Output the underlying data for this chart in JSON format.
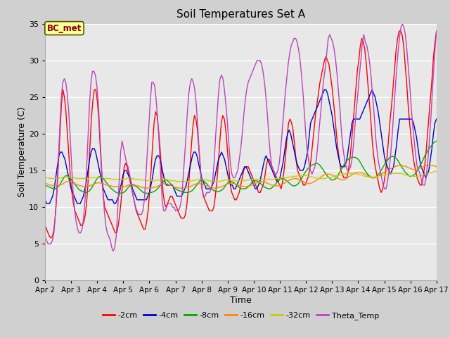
{
  "title": "Soil Temperatures Set A",
  "xlabel": "Time",
  "ylabel": "Soil Temperature (C)",
  "annotation": "BC_met",
  "ylim": [
    0,
    35
  ],
  "series": {
    "-2cm": {
      "color": "#ff0000"
    },
    "-4cm": {
      "color": "#0000cc"
    },
    "-8cm": {
      "color": "#00aa00"
    },
    "-16cm": {
      "color": "#ff8800"
    },
    "-32cm": {
      "color": "#cccc00"
    },
    "Theta_Temp": {
      "color": "#bb44bb"
    }
  },
  "x_labels": [
    "Apr 2",
    "Apr 3",
    "Apr 4",
    "Apr 5",
    "Apr 6",
    "Apr 7",
    "Apr 8",
    "Apr 9",
    "Apr 10",
    "Apr 11",
    "Apr 12",
    "Apr 13",
    "Apr 14",
    "Apr 15",
    "Apr 16",
    "Apr 17"
  ],
  "x_ticks": [
    0,
    24,
    48,
    72,
    96,
    120,
    144,
    168,
    192,
    216,
    240,
    264,
    288,
    312,
    336,
    360
  ],
  "data_2cm": [
    7.5,
    7.0,
    6.5,
    6.0,
    5.8,
    6.0,
    7.0,
    9.0,
    12.0,
    16.0,
    20.0,
    24.0,
    26.0,
    25.0,
    23.0,
    20.0,
    17.0,
    14.0,
    12.0,
    10.5,
    9.5,
    9.0,
    8.5,
    8.0,
    7.5,
    7.5,
    8.0,
    9.0,
    11.0,
    14.0,
    18.0,
    22.0,
    24.5,
    26.0,
    26.0,
    24.5,
    22.0,
    18.0,
    14.5,
    11.5,
    10.0,
    9.5,
    9.0,
    8.5,
    8.0,
    7.5,
    7.0,
    6.5,
    6.5,
    7.5,
    9.0,
    11.0,
    13.5,
    15.5,
    16.0,
    15.5,
    14.5,
    13.5,
    12.5,
    11.5,
    10.5,
    9.5,
    9.0,
    8.5,
    8.0,
    7.5,
    7.0,
    7.0,
    8.0,
    9.5,
    12.0,
    15.0,
    18.5,
    21.5,
    23.0,
    22.5,
    20.5,
    18.0,
    15.0,
    12.0,
    10.5,
    10.0,
    10.5,
    11.0,
    11.5,
    11.5,
    11.0,
    10.5,
    10.0,
    9.5,
    9.0,
    8.5,
    8.5,
    8.5,
    9.0,
    10.5,
    12.5,
    15.5,
    18.5,
    21.0,
    22.5,
    22.0,
    20.5,
    18.0,
    15.5,
    12.5,
    11.5,
    11.0,
    10.5,
    10.0,
    9.5,
    9.5,
    9.5,
    10.0,
    11.5,
    13.5,
    16.0,
    19.0,
    21.5,
    22.5,
    22.0,
    20.5,
    18.0,
    15.5,
    13.0,
    12.0,
    11.5,
    11.0,
    11.0,
    11.5,
    12.0,
    13.0,
    14.0,
    15.0,
    15.5,
    15.5,
    15.5,
    15.0,
    14.5,
    14.0,
    13.5,
    13.0,
    12.5,
    12.0,
    12.0,
    12.5,
    13.0,
    14.0,
    15.5,
    16.5,
    16.5,
    16.0,
    15.5,
    15.0,
    14.5,
    14.0,
    13.5,
    13.0,
    12.5,
    13.5,
    15.0,
    17.0,
    19.5,
    21.5,
    22.0,
    21.5,
    20.5,
    18.5,
    16.5,
    15.0,
    14.5,
    14.0,
    13.5,
    13.0,
    13.0,
    13.5,
    14.0,
    15.0,
    16.5,
    18.5,
    20.5,
    22.5,
    24.0,
    25.5,
    27.0,
    28.0,
    29.0,
    30.0,
    30.5,
    30.0,
    29.5,
    28.0,
    26.5,
    24.5,
    22.5,
    20.0,
    18.0,
    16.5,
    15.0,
    14.5,
    14.0,
    14.0,
    14.0,
    15.0,
    16.5,
    18.5,
    21.0,
    23.5,
    26.0,
    28.5,
    30.0,
    32.0,
    33.0,
    32.5,
    31.5,
    29.5,
    27.0,
    24.5,
    22.0,
    19.0,
    17.0,
    15.5,
    14.5,
    13.5,
    12.5,
    12.0,
    12.5,
    13.5,
    15.0,
    17.0,
    19.5,
    22.0,
    24.0,
    26.5,
    29.0,
    31.5,
    33.0,
    34.0,
    34.0,
    33.5,
    32.0,
    29.5,
    27.0,
    24.0,
    21.5,
    19.5,
    17.5,
    16.0,
    15.0,
    14.0,
    13.5,
    13.0,
    13.0,
    14.0,
    15.5,
    17.5,
    20.0,
    22.5,
    25.0,
    27.5,
    30.5,
    32.5,
    34.0
  ],
  "data_4cm": [
    11.0,
    10.5,
    10.5,
    10.5,
    11.0,
    11.5,
    12.5,
    14.0,
    15.5,
    17.0,
    17.5,
    17.5,
    17.0,
    16.5,
    15.5,
    14.5,
    13.5,
    12.5,
    12.0,
    11.5,
    11.0,
    10.5,
    10.5,
    10.5,
    11.0,
    11.5,
    12.5,
    13.5,
    15.0,
    16.5,
    17.5,
    18.0,
    18.0,
    17.5,
    16.5,
    15.5,
    14.5,
    13.5,
    12.5,
    12.0,
    11.5,
    11.0,
    11.0,
    11.0,
    11.0,
    10.5,
    10.5,
    11.0,
    11.5,
    12.5,
    13.5,
    14.5,
    15.0,
    15.0,
    14.5,
    14.0,
    13.5,
    12.5,
    12.0,
    11.5,
    11.0,
    11.0,
    11.0,
    11.0,
    11.0,
    11.0,
    11.0,
    11.5,
    12.0,
    13.0,
    14.0,
    15.5,
    16.5,
    17.0,
    17.0,
    16.5,
    15.5,
    14.5,
    13.5,
    13.0,
    13.0,
    13.0,
    13.0,
    13.0,
    12.5,
    12.0,
    11.5,
    11.5,
    11.5,
    11.5,
    12.0,
    12.5,
    13.0,
    14.0,
    15.0,
    16.0,
    17.0,
    17.5,
    17.5,
    17.0,
    16.0,
    15.0,
    14.0,
    13.5,
    13.0,
    12.5,
    12.5,
    12.5,
    12.5,
    13.0,
    13.5,
    14.5,
    15.5,
    16.5,
    17.0,
    17.5,
    17.0,
    16.5,
    15.5,
    14.5,
    13.5,
    13.0,
    13.0,
    12.5,
    12.5,
    13.0,
    13.5,
    14.0,
    14.5,
    15.0,
    15.5,
    15.5,
    15.0,
    14.5,
    14.0,
    13.5,
    13.0,
    12.5,
    12.5,
    13.0,
    13.5,
    14.5,
    15.5,
    16.5,
    17.0,
    16.5,
    16.0,
    15.5,
    15.0,
    14.5,
    14.0,
    13.5,
    13.5,
    14.0,
    15.0,
    16.0,
    17.5,
    19.0,
    20.0,
    20.5,
    20.0,
    19.0,
    18.0,
    17.0,
    16.0,
    15.5,
    15.0,
    15.0,
    15.0,
    15.5,
    16.5,
    17.5,
    19.5,
    21.5,
    22.0,
    22.5,
    23.0,
    23.5,
    24.0,
    24.5,
    25.0,
    25.5,
    26.0,
    26.0,
    25.5,
    24.5,
    23.5,
    22.5,
    21.0,
    19.5,
    18.0,
    17.0,
    16.0,
    15.5,
    15.5,
    15.5,
    16.0,
    17.0,
    18.5,
    20.0,
    21.5,
    22.0,
    22.0,
    22.0,
    22.0,
    22.0,
    22.5,
    23.0,
    23.5,
    24.0,
    24.5,
    25.0,
    25.5,
    26.0,
    25.5,
    25.0,
    24.0,
    23.0,
    21.5,
    20.0,
    18.5,
    17.0,
    16.0,
    15.5,
    15.0,
    14.5,
    15.0,
    15.5,
    17.0,
    18.5,
    20.5,
    22.0,
    22.0,
    22.0,
    22.0,
    22.0,
    22.0,
    22.0,
    22.0,
    22.0,
    21.5,
    20.5,
    19.5,
    18.0,
    16.5,
    15.5,
    15.0,
    14.5,
    14.0,
    14.5,
    15.0,
    16.5,
    18.0,
    20.0,
    21.5,
    22.0
  ],
  "data_8cm": [
    13.0,
    12.9,
    12.8,
    12.7,
    12.6,
    12.5,
    12.5,
    12.6,
    12.8,
    13.1,
    13.5,
    13.9,
    14.2,
    14.3,
    14.2,
    14.0,
    13.7,
    13.4,
    13.1,
    12.8,
    12.5,
    12.3,
    12.2,
    12.1,
    12.0,
    12.0,
    12.1,
    12.3,
    12.6,
    13.0,
    13.4,
    13.8,
    14.1,
    14.2,
    14.1,
    13.9,
    13.6,
    13.3,
    13.0,
    12.7,
    12.5,
    12.3,
    12.1,
    12.0,
    11.9,
    11.9,
    11.9,
    12.0,
    12.1,
    12.4,
    12.7,
    12.9,
    13.1,
    13.0,
    12.9,
    12.8,
    12.6,
    12.4,
    12.2,
    12.0,
    11.9,
    11.9,
    11.9,
    12.0,
    12.0,
    12.1,
    12.2,
    12.4,
    12.6,
    12.9,
    13.2,
    13.5,
    13.7,
    13.7,
    13.5,
    13.3,
    13.0,
    12.8,
    12.6,
    12.4,
    12.3,
    12.2,
    12.1,
    12.1,
    12.0,
    12.0,
    12.0,
    12.1,
    12.2,
    12.4,
    12.7,
    13.0,
    13.3,
    13.6,
    13.7,
    13.6,
    13.4,
    13.2,
    12.9,
    12.7,
    12.5,
    12.3,
    12.2,
    12.1,
    12.1,
    12.2,
    12.3,
    12.5,
    12.8,
    13.1,
    13.4,
    13.5,
    13.5,
    13.4,
    13.2,
    13.0,
    12.8,
    12.6,
    12.5,
    12.5,
    12.5,
    12.6,
    12.8,
    13.0,
    13.3,
    13.5,
    13.6,
    13.6,
    13.5,
    13.3,
    13.1,
    12.9,
    12.7,
    12.6,
    12.5,
    12.5,
    12.6,
    12.8,
    13.0,
    13.3,
    13.6,
    13.8,
    13.9,
    13.9,
    13.8,
    13.6,
    13.4,
    13.2,
    13.0,
    12.9,
    12.9,
    13.0,
    13.2,
    13.5,
    13.9,
    14.3,
    14.7,
    15.0,
    15.3,
    15.5,
    15.7,
    15.8,
    15.9,
    16.0,
    15.9,
    15.7,
    15.4,
    15.1,
    14.7,
    14.4,
    14.1,
    13.9,
    13.7,
    13.7,
    13.8,
    14.0,
    14.4,
    14.8,
    15.2,
    15.6,
    16.0,
    16.3,
    16.5,
    16.7,
    16.8,
    16.8,
    16.8,
    16.7,
    16.5,
    16.2,
    15.8,
    15.4,
    15.0,
    14.7,
    14.4,
    14.2,
    14.0,
    14.0,
    14.0,
    14.2,
    14.4,
    14.7,
    15.1,
    15.5,
    15.9,
    16.2,
    16.5,
    16.8,
    16.9,
    16.9,
    16.8,
    16.6,
    16.3,
    15.9,
    15.5,
    15.2,
    14.8,
    14.6,
    14.4,
    14.2,
    14.2,
    14.3,
    14.5,
    14.8,
    15.2,
    15.6,
    16.0,
    16.5,
    17.0,
    17.4,
    17.8,
    18.1,
    18.4,
    18.7,
    18.9,
    19.0
  ],
  "data_16cm": [
    13.2,
    13.2,
    13.1,
    13.0,
    13.0,
    12.9,
    12.9,
    12.9,
    12.9,
    13.0,
    13.1,
    13.2,
    13.4,
    13.5,
    13.5,
    13.5,
    13.4,
    13.3,
    13.2,
    13.1,
    13.0,
    12.9,
    12.9,
    12.8,
    12.8,
    12.8,
    12.9,
    12.9,
    13.0,
    13.1,
    13.2,
    13.3,
    13.3,
    13.3,
    13.3,
    13.2,
    13.1,
    13.0,
    13.0,
    12.9,
    12.9,
    12.8,
    12.8,
    12.8,
    12.8,
    12.7,
    12.7,
    12.8,
    12.8,
    12.9,
    13.0,
    13.1,
    13.1,
    13.1,
    13.0,
    12.9,
    12.9,
    12.8,
    12.7,
    12.7,
    12.6,
    12.6,
    12.6,
    12.6,
    12.6,
    12.7,
    12.7,
    12.8,
    12.9,
    13.0,
    13.1,
    13.2,
    13.2,
    13.2,
    13.1,
    13.0,
    12.9,
    12.8,
    12.7,
    12.7,
    12.6,
    12.6,
    12.6,
    12.6,
    12.6,
    12.7,
    12.7,
    12.8,
    12.9,
    13.0,
    13.1,
    13.2,
    13.2,
    13.2,
    13.1,
    13.1,
    13.0,
    12.9,
    12.8,
    12.7,
    12.7,
    12.6,
    12.6,
    12.6,
    12.7,
    12.7,
    12.8,
    12.9,
    13.0,
    13.1,
    13.2,
    13.3,
    13.3,
    13.2,
    13.2,
    13.1,
    13.0,
    12.9,
    12.9,
    12.8,
    12.8,
    12.8,
    12.9,
    12.9,
    13.0,
    13.1,
    13.2,
    13.3,
    13.4,
    13.4,
    13.5,
    13.4,
    13.4,
    13.3,
    13.2,
    13.1,
    13.0,
    13.0,
    12.9,
    12.9,
    12.9,
    13.0,
    13.1,
    13.2,
    13.3,
    13.5,
    13.6,
    13.7,
    13.8,
    13.9,
    13.9,
    13.9,
    13.8,
    13.7,
    13.6,
    13.5,
    13.3,
    13.2,
    13.2,
    13.2,
    13.3,
    13.4,
    13.5,
    13.7,
    13.8,
    14.0,
    14.2,
    14.3,
    14.5,
    14.5,
    14.5,
    14.5,
    14.4,
    14.3,
    14.2,
    14.0,
    13.9,
    13.8,
    13.7,
    13.7,
    13.8,
    13.9,
    14.1,
    14.2,
    14.4,
    14.5,
    14.7,
    14.7,
    14.7,
    14.7,
    14.7,
    14.6,
    14.5,
    14.4,
    14.2,
    14.1,
    14.0,
    14.0,
    14.0,
    14.1,
    14.2,
    14.4,
    14.5,
    14.7,
    14.8,
    14.9,
    15.0,
    15.2,
    15.3,
    15.4,
    15.5,
    15.6,
    15.7,
    15.7,
    15.7,
    15.6,
    15.6,
    15.5,
    15.4,
    15.3,
    15.2,
    15.1,
    15.1,
    15.1,
    15.2,
    15.3,
    15.4,
    15.5,
    15.6,
    15.7,
    15.7,
    15.7,
    15.7,
    15.7,
    15.6,
    15.5
  ],
  "data_32cm": [
    14.0,
    14.0,
    14.0,
    13.9,
    13.9,
    13.9,
    13.9,
    13.9,
    13.9,
    14.0,
    14.0,
    14.1,
    14.1,
    14.1,
    14.1,
    14.1,
    14.0,
    14.0,
    14.0,
    13.9,
    13.9,
    13.9,
    13.9,
    13.9,
    13.9,
    13.9,
    13.9,
    14.0,
    14.0,
    14.0,
    14.0,
    14.0,
    14.0,
    14.0,
    14.0,
    14.0,
    13.9,
    13.9,
    13.9,
    13.9,
    13.8,
    13.8,
    13.8,
    13.8,
    13.8,
    13.8,
    13.8,
    13.8,
    13.8,
    13.9,
    13.9,
    13.9,
    13.9,
    13.9,
    13.8,
    13.8,
    13.8,
    13.7,
    13.7,
    13.7,
    13.7,
    13.6,
    13.6,
    13.6,
    13.6,
    13.6,
    13.6,
    13.7,
    13.7,
    13.7,
    13.8,
    13.8,
    13.8,
    13.8,
    13.7,
    13.7,
    13.6,
    13.6,
    13.6,
    13.5,
    13.5,
    13.5,
    13.5,
    13.5,
    13.5,
    13.5,
    13.5,
    13.5,
    13.6,
    13.6,
    13.7,
    13.7,
    13.8,
    13.8,
    13.8,
    13.8,
    13.7,
    13.7,
    13.6,
    13.6,
    13.5,
    13.5,
    13.5,
    13.5,
    13.5,
    13.5,
    13.6,
    13.6,
    13.7,
    13.7,
    13.7,
    13.7,
    13.7,
    13.7,
    13.6,
    13.6,
    13.6,
    13.6,
    13.6,
    13.6,
    13.6,
    13.7,
    13.7,
    13.7,
    13.8,
    13.8,
    13.8,
    13.8,
    13.8,
    13.8,
    13.8,
    13.8,
    13.8,
    13.8,
    13.8,
    13.8,
    13.8,
    13.8,
    13.9,
    13.9,
    13.9,
    13.9,
    14.0,
    14.0,
    14.0,
    14.0,
    14.1,
    14.1,
    14.1,
    14.2,
    14.2,
    14.2,
    14.3,
    14.3,
    14.3,
    14.3,
    14.3,
    14.3,
    14.2,
    14.2,
    14.1,
    14.1,
    14.0,
    14.0,
    13.9,
    13.9,
    13.9,
    13.9,
    13.9,
    14.0,
    14.0,
    14.0,
    14.1,
    14.1,
    14.2,
    14.3,
    14.3,
    14.4,
    14.4,
    14.5,
    14.5,
    14.6,
    14.6,
    14.6,
    14.6,
    14.6,
    14.6,
    14.5,
    14.5,
    14.4,
    14.4,
    14.3,
    14.2,
    14.2,
    14.1,
    14.1,
    14.1,
    14.1,
    14.1,
    14.2,
    14.2,
    14.3,
    14.3,
    14.4,
    14.4,
    14.5,
    14.5,
    14.6,
    14.6,
    14.6,
    14.6,
    14.6,
    14.6,
    14.6,
    14.6,
    14.5,
    14.4,
    14.4,
    14.3,
    14.3,
    14.2,
    14.2,
    14.2,
    14.2,
    14.2,
    14.3,
    14.3,
    14.4,
    14.5,
    14.5,
    14.6,
    14.7,
    14.7,
    14.8,
    14.9,
    14.9
  ],
  "data_theta": [
    6.0,
    5.5,
    5.0,
    5.0,
    5.0,
    5.5,
    6.5,
    9.0,
    12.5,
    16.5,
    21.0,
    25.0,
    27.0,
    27.5,
    27.0,
    25.5,
    23.0,
    19.5,
    15.5,
    12.0,
    9.5,
    8.0,
    7.0,
    6.5,
    6.5,
    7.0,
    8.5,
    11.0,
    15.0,
    19.5,
    24.0,
    27.0,
    28.5,
    28.5,
    28.0,
    26.5,
    24.0,
    20.0,
    16.0,
    12.5,
    9.5,
    7.5,
    6.5,
    6.0,
    5.5,
    4.5,
    4.0,
    4.5,
    6.0,
    9.5,
    13.5,
    17.5,
    19.0,
    18.0,
    17.0,
    16.0,
    15.5,
    14.5,
    13.5,
    12.0,
    11.0,
    10.0,
    9.5,
    9.0,
    9.0,
    9.0,
    9.5,
    11.0,
    14.0,
    17.5,
    21.0,
    24.5,
    27.0,
    27.0,
    26.5,
    24.5,
    22.0,
    18.5,
    14.5,
    11.0,
    9.5,
    9.5,
    10.0,
    10.5,
    10.5,
    10.5,
    10.0,
    10.0,
    9.5,
    9.5,
    9.5,
    10.0,
    11.0,
    13.5,
    16.5,
    19.5,
    23.0,
    25.5,
    27.0,
    27.5,
    27.0,
    26.0,
    24.0,
    21.0,
    17.5,
    14.5,
    12.5,
    11.5,
    11.5,
    12.0,
    12.0,
    12.0,
    12.5,
    13.5,
    16.0,
    19.5,
    22.5,
    25.5,
    27.5,
    28.0,
    27.5,
    26.0,
    24.0,
    21.5,
    18.5,
    16.0,
    14.5,
    14.0,
    14.0,
    14.5,
    15.0,
    16.5,
    18.0,
    20.0,
    22.5,
    24.5,
    26.0,
    27.0,
    27.5,
    28.0,
    28.5,
    29.0,
    29.5,
    30.0,
    30.0,
    30.0,
    29.5,
    28.5,
    27.0,
    25.0,
    22.5,
    19.5,
    17.0,
    15.5,
    15.0,
    14.5,
    14.5,
    15.0,
    16.0,
    18.0,
    20.5,
    23.0,
    25.5,
    27.5,
    29.5,
    31.0,
    32.0,
    32.5,
    33.0,
    33.0,
    32.5,
    31.5,
    30.0,
    28.0,
    25.5,
    22.5,
    19.5,
    17.5,
    16.0,
    15.0,
    14.5,
    15.0,
    15.5,
    16.5,
    18.5,
    21.0,
    23.0,
    25.5,
    27.5,
    29.0,
    31.0,
    33.0,
    33.5,
    33.0,
    32.5,
    31.5,
    30.0,
    28.0,
    25.5,
    23.0,
    20.0,
    18.0,
    16.5,
    15.5,
    15.0,
    15.0,
    15.5,
    16.5,
    18.5,
    21.0,
    23.5,
    25.5,
    28.0,
    30.0,
    32.5,
    33.5,
    32.5,
    32.0,
    31.0,
    29.5,
    27.5,
    25.0,
    22.5,
    19.5,
    17.5,
    16.0,
    15.0,
    14.0,
    13.0,
    12.5,
    12.5,
    13.5,
    15.0,
    17.0,
    19.5,
    22.5,
    25.5,
    28.5,
    31.0,
    33.0,
    34.5,
    35.0,
    34.5,
    33.5,
    31.5,
    29.0,
    26.5,
    23.5,
    21.0,
    19.0,
    17.0,
    15.5,
    15.0,
    14.5,
    13.5,
    13.0,
    13.0,
    14.0,
    16.0,
    18.5,
    21.5,
    25.0,
    28.5,
    31.5,
    34.0
  ]
}
